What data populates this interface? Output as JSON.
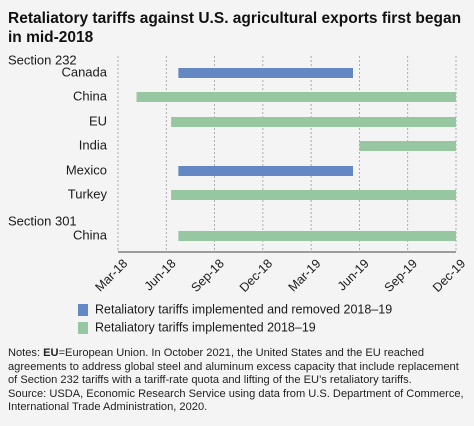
{
  "title": "Retaliatory tariffs against U.S. agricultural exports first began in mid-2018",
  "chart_data": {
    "type": "bar",
    "orientation": "horizontal-timeline",
    "x_ticks": [
      "Mar-18",
      "Jun-18",
      "Sep-18",
      "Dec-18",
      "Mar-19",
      "Jun-19",
      "Sep-19",
      "Dec-19"
    ],
    "x_tick_values": [
      0,
      3,
      6,
      9,
      12,
      15,
      18,
      21
    ],
    "xlim": [
      0,
      21
    ],
    "grid": "vertical dashed",
    "groups": [
      {
        "label": "Section 232",
        "rows": [
          {
            "label": "Canada",
            "start": 3.75,
            "end": 14.6,
            "series": "removed"
          },
          {
            "label": "China",
            "start": 1.15,
            "end": 21,
            "series": "implemented"
          },
          {
            "label": "EU",
            "start": 3.3,
            "end": 21,
            "series": "implemented"
          },
          {
            "label": "India",
            "start": 15.0,
            "end": 21,
            "series": "implemented"
          },
          {
            "label": "Mexico",
            "start": 3.75,
            "end": 14.6,
            "series": "removed"
          },
          {
            "label": "Turkey",
            "start": 3.3,
            "end": 21,
            "series": "implemented"
          }
        ]
      },
      {
        "label": "Section 301",
        "rows": [
          {
            "label": "China",
            "start": 3.75,
            "end": 21,
            "series": "implemented"
          }
        ]
      }
    ],
    "legend": [
      {
        "key": "removed",
        "name": "Retaliatory tariffs implemented and removed 2018–19",
        "color": "#6488c4"
      },
      {
        "key": "implemented",
        "name": "Retaliatory tariffs implemented 2018–19",
        "color": "#97c7a0"
      }
    ],
    "legend_placement": "bottom"
  },
  "notes": {
    "prefix": "Notes: ",
    "term": "EU",
    "text": "=European Union. In October 2021, the United States and the EU reached agreements to address global steel and aluminum excess capacity that include replacement of Section 232 tariffs with a tariff-rate quota and lifting of the EU’s retaliatory tariffs.",
    "source": "Source: USDA, Economic Research Service using data from U.S. Department of Commerce, International Trade Administration, 2020."
  }
}
